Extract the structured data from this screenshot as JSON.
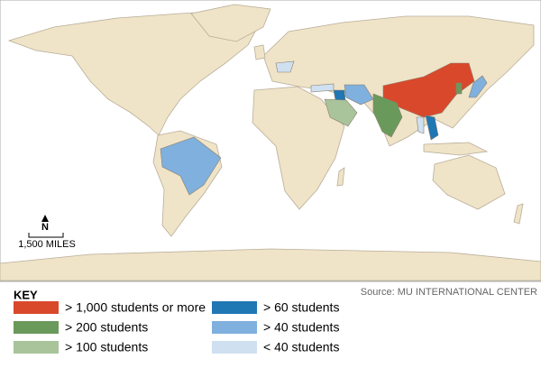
{
  "map": {
    "compass": "N",
    "scale": "1,500 MILES",
    "source": "Source: MU INTERNATIONAL CENTER"
  },
  "key": {
    "title": "KEY",
    "items": [
      {
        "label": "> 1,000 students or more",
        "color": "#d9482b"
      },
      {
        "label": "> 60 students",
        "color": "#1f77b4"
      },
      {
        "label": "> 200 students",
        "color": "#6a9a5b"
      },
      {
        "label": "> 40 students",
        "color": "#7fb0de"
      },
      {
        "label": "> 100 students",
        "color": "#a9c49a"
      },
      {
        "label": "< 40 students",
        "color": "#cfe0f1"
      }
    ]
  }
}
